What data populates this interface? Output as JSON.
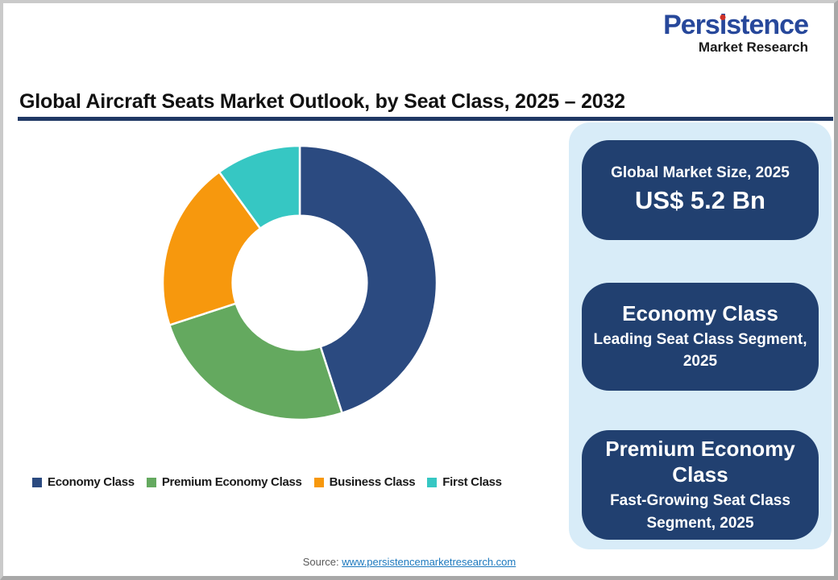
{
  "logo": {
    "brand_pre": "Pers",
    "brand_i": "i",
    "brand_post": "stence",
    "subtitle": "Market Research",
    "brand_color": "#27489B",
    "i_dot_color": "#D03027"
  },
  "title": "Global Aircraft Seats Market Outlook, by Seat Class, 2025 – 2032",
  "chart_data": {
    "type": "pie",
    "subtype": "donut",
    "title": "Global Aircraft Seats Market Outlook, by Seat Class, 2025 – 2032",
    "categories": [
      "Economy Class",
      "Premium Economy Class",
      "Business Class",
      "First Class"
    ],
    "values": [
      45,
      25,
      20,
      10
    ],
    "values_note": "percent share estimated from arc angles; no data labels shown in image",
    "colors": [
      "#2B4A80",
      "#64A95F",
      "#F7980D",
      "#36C7C3"
    ],
    "start_angle_deg": 0,
    "direction": "clockwise",
    "inner_radius_ratio": 0.49,
    "slice_separator_color": "#FFFFFF",
    "legend_position": "bottom",
    "data_labels": false
  },
  "panel": {
    "cards": [
      {
        "title": "Global Market Size, 2025",
        "value": "US$ 5.2 Bn"
      },
      {
        "title": "Economy Class",
        "subtitle": "Leading Seat Class Segment, 2025"
      },
      {
        "title": "Premium Economy Class",
        "subtitle": "Fast-Growing Seat Class Segment, 2025"
      }
    ]
  },
  "source": {
    "label": "Source:",
    "link_text": "www.persistencemarketresearch.com"
  },
  "theme": {
    "card_bg": "#214070",
    "panel_bg": "#D8ECF8",
    "title_underline": "#1F3864",
    "link_color": "#1B78BE",
    "source_label_color": "#595959",
    "frame_border": "#A8A8A8"
  }
}
